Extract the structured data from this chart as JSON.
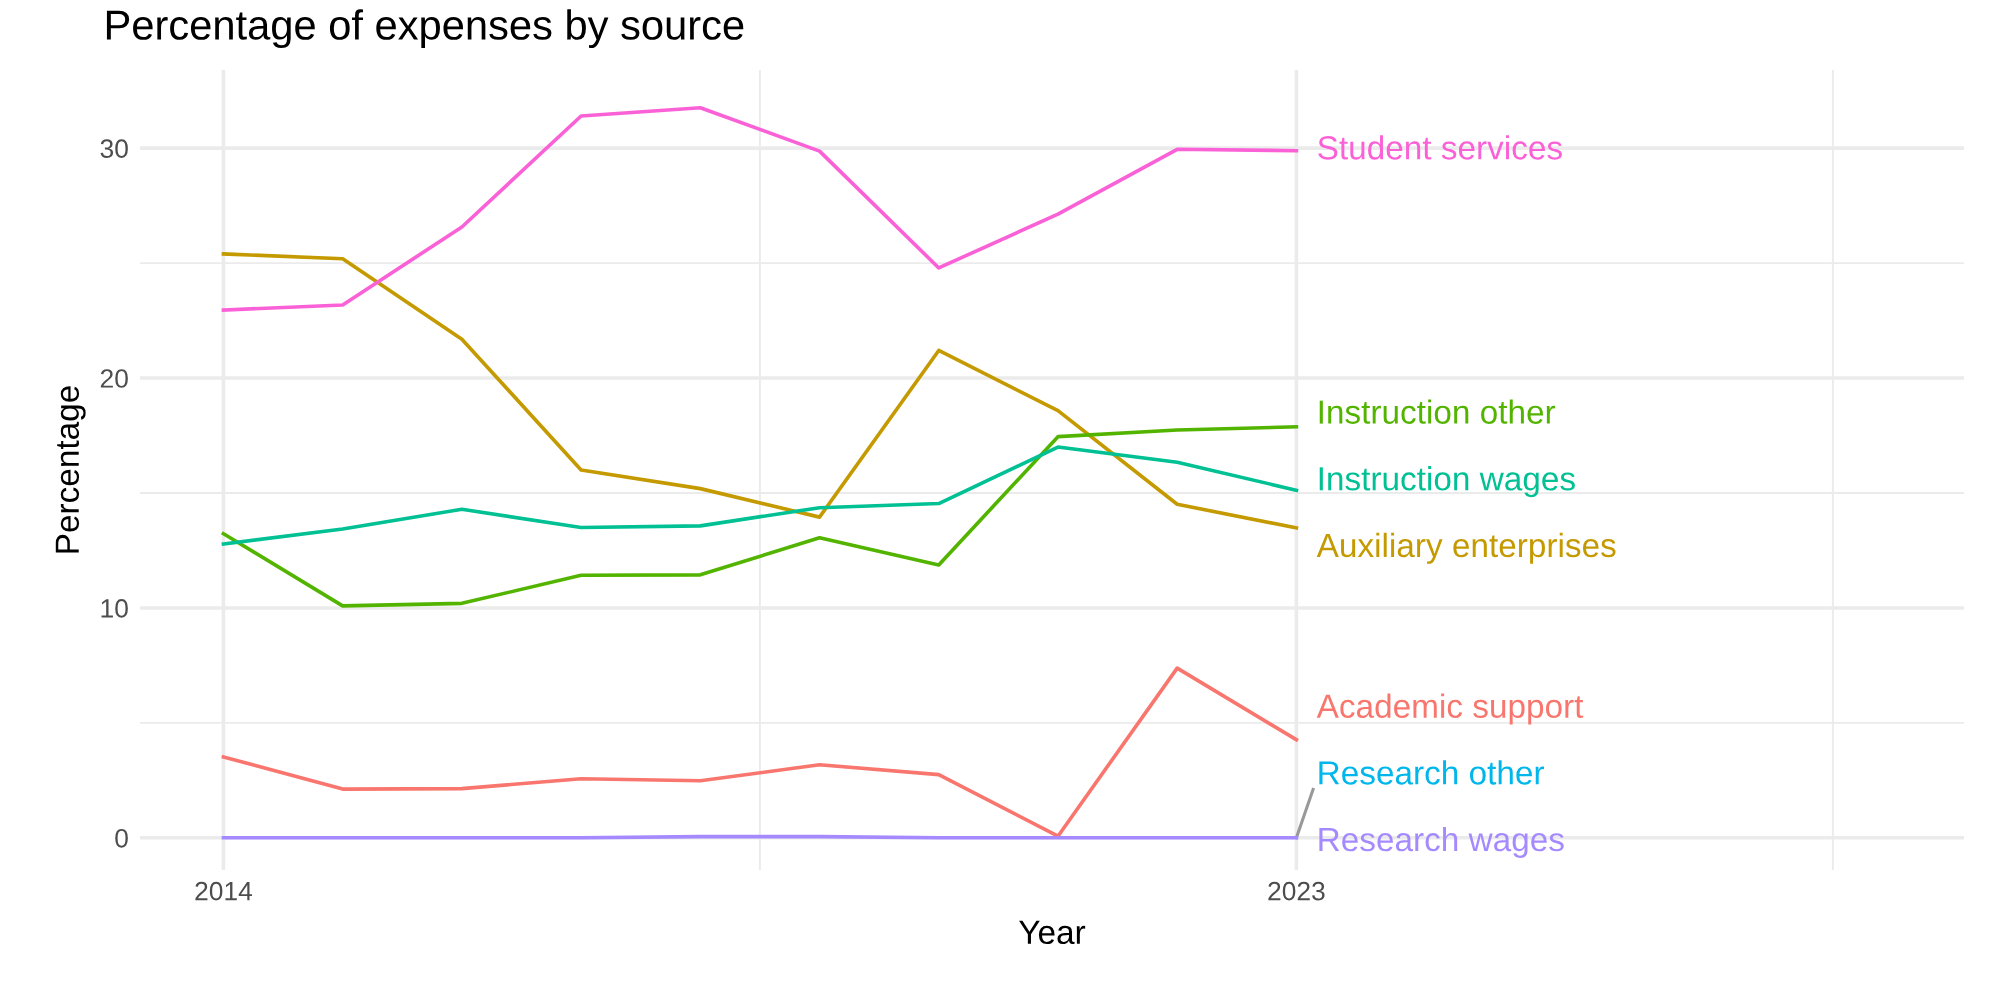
{
  "chart_data": {
    "type": "line",
    "title": "Percentage of expenses by source",
    "xlabel": "Year",
    "ylabel": "Percentage",
    "x": [
      2014,
      2015,
      2016,
      2017,
      2018,
      2019,
      2020,
      2021,
      2022,
      2023
    ],
    "series": [
      {
        "name": "Academic support",
        "color": "#f8766d",
        "values": [
          3.52,
          2.12,
          2.14,
          2.57,
          2.48,
          3.18,
          2.75,
          0.07,
          7.38,
          4.27
        ]
      },
      {
        "name": "Auxiliary enterprises",
        "color": "#c49a00",
        "values": [
          25.4,
          25.19,
          21.69,
          16.0,
          15.19,
          13.95,
          21.2,
          18.58,
          14.51,
          13.48
        ]
      },
      {
        "name": "Instruction other",
        "color": "#53b400",
        "values": [
          13.23,
          10.09,
          10.2,
          11.42,
          11.44,
          13.05,
          11.87,
          17.45,
          17.74,
          17.88
        ]
      },
      {
        "name": "Instruction wages",
        "color": "#00c094",
        "values": [
          12.78,
          13.43,
          14.29,
          13.5,
          13.57,
          14.36,
          14.54,
          17.0,
          16.34,
          15.12
        ]
      },
      {
        "name": "Research other",
        "color": "#00b6eb",
        "values": [
          null,
          null,
          null,
          null,
          null,
          null,
          null,
          null,
          null,
          null
        ]
      },
      {
        "name": "Research wages",
        "color": "#a58aff",
        "values": [
          0,
          0,
          0,
          0,
          0.05,
          0.05,
          0,
          0,
          0,
          0
        ]
      },
      {
        "name": "Student services",
        "color": "#fb61d7",
        "values": [
          22.96,
          23.18,
          26.57,
          31.4,
          31.76,
          29.87,
          24.79,
          27.13,
          29.95,
          29.89
        ]
      }
    ],
    "xlim": [
      2013.3,
      2028.6
    ],
    "xticks": [
      2014,
      {
        "value": 2018.5,
        "label": null
      },
      2023,
      {
        "value": 2027.5,
        "label": null
      }
    ],
    "ylim": [
      -1.4,
      33.4
    ],
    "yticks": [
      0,
      {
        "value": 5,
        "label": null
      },
      10,
      {
        "value": 15,
        "label": null
      },
      20,
      {
        "value": 25,
        "label": null
      },
      30
    ],
    "grid": true,
    "legend": false,
    "marker": "none",
    "line_style": "solid"
  }
}
